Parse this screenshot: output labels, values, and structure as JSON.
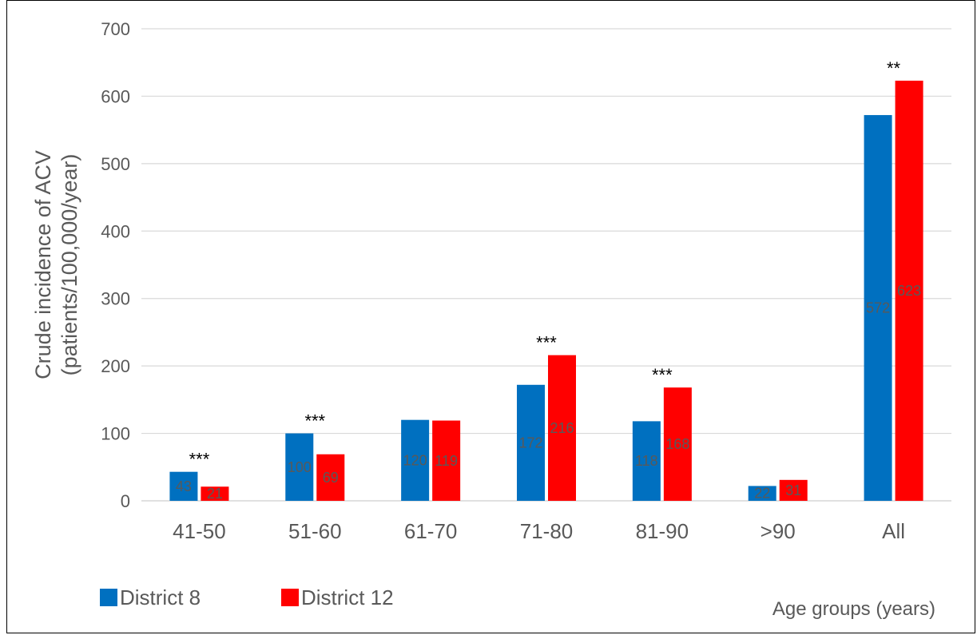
{
  "chart_data": {
    "type": "bar",
    "categories": [
      "41-50",
      "51-60",
      "61-70",
      "71-80",
      "81-90",
      ">90",
      "All"
    ],
    "series": [
      {
        "name": "District 8",
        "values": [
          43,
          100,
          120,
          172,
          118,
          22,
          572
        ],
        "labels": [
          "43",
          "100",
          "120",
          "172",
          "118",
          "22",
          "572"
        ],
        "color": "#0070c0"
      },
      {
        "name": "District 12",
        "values": [
          21,
          69,
          119,
          216,
          168,
          31,
          623
        ],
        "labels": [
          "21",
          "69",
          "119",
          "216",
          "168",
          "31",
          "623"
        ],
        "color": "#ff0000"
      }
    ],
    "significance": [
      "***",
      "***",
      "",
      "***",
      "***",
      "",
      "**"
    ],
    "ylabel_line1": "Crude incidence of ACV",
    "ylabel_line2": "(patients/100,000/year)",
    "xlabel": "Age groups (years)",
    "ylim": [
      0,
      700
    ],
    "yticks": [
      0,
      100,
      200,
      300,
      400,
      500,
      600,
      700
    ],
    "grid": true,
    "legend_position": "bottom-left"
  }
}
